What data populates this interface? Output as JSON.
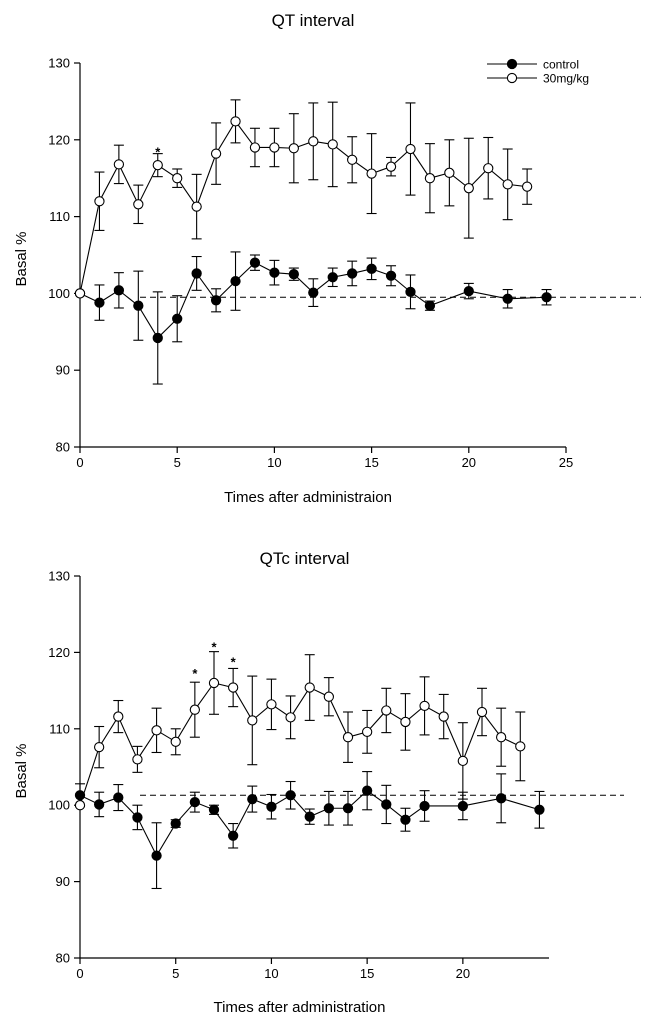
{
  "chart_data": [
    {
      "type": "line",
      "title": "QT interval",
      "xlabel": "Times after administraion",
      "ylabel": "Basal %",
      "xlim": [
        0,
        25
      ],
      "ylim": [
        80,
        130
      ],
      "xticks": [
        0,
        5,
        10,
        15,
        20,
        25
      ],
      "yticks": [
        80,
        90,
        100,
        110,
        120,
        130
      ],
      "reference_line": 99.5,
      "legend_position": "top-right",
      "significance_marks": [
        {
          "x": 4,
          "y": 118.5,
          "label": "*"
        }
      ],
      "series": [
        {
          "name": "control",
          "marker": "filled",
          "x": [
            0,
            1,
            2,
            3,
            4,
            5,
            6,
            7,
            8,
            9,
            10,
            11,
            12,
            13,
            14,
            15,
            16,
            17,
            18,
            20,
            22,
            24
          ],
          "y": [
            100,
            98.8,
            100.4,
            98.4,
            94.2,
            96.7,
            102.6,
            99.1,
            101.6,
            104.0,
            102.7,
            102.5,
            100.1,
            102.1,
            102.6,
            103.2,
            102.3,
            100.2,
            98.4,
            100.3,
            99.3,
            99.5
          ],
          "err": [
            0,
            2.3,
            2.3,
            4.5,
            6.0,
            3.0,
            2.2,
            1.5,
            3.8,
            1.0,
            1.6,
            0.8,
            1.8,
            1.2,
            1.6,
            1.4,
            1.3,
            2.2,
            0.6,
            1.0,
            1.2,
            1.0
          ]
        },
        {
          "name": "30mg/kg",
          "marker": "open",
          "x": [
            0,
            1,
            2,
            3,
            4,
            5,
            6,
            7,
            8,
            9,
            10,
            11,
            12,
            13,
            14,
            15,
            16,
            17,
            18,
            19,
            20,
            21,
            22,
            23
          ],
          "y": [
            100,
            112.0,
            116.8,
            111.6,
            116.7,
            115.0,
            111.3,
            118.2,
            122.4,
            119.0,
            119.0,
            118.9,
            119.8,
            119.4,
            117.4,
            115.6,
            116.5,
            118.8,
            115.0,
            115.7,
            113.7,
            116.3,
            114.2,
            113.9
          ],
          "err": [
            0,
            3.8,
            2.5,
            2.5,
            1.5,
            1.2,
            4.2,
            4.0,
            2.8,
            2.5,
            2.5,
            4.5,
            5.0,
            5.5,
            3.0,
            5.2,
            1.2,
            6.0,
            4.5,
            4.3,
            6.5,
            4.0,
            4.6,
            2.3
          ]
        }
      ]
    },
    {
      "type": "line",
      "title": "QTc interval",
      "xlabel": "Times after administration",
      "ylabel": "Basal %",
      "xlim": [
        0,
        24.5
      ],
      "ylim": [
        80,
        130
      ],
      "xticks": [
        0,
        5,
        10,
        15,
        20
      ],
      "yticks": [
        80,
        90,
        100,
        110,
        120,
        130
      ],
      "reference_line": 101.3,
      "legend_position": "none",
      "significance_marks": [
        {
          "x": 6,
          "y": 117.3,
          "label": "*"
        },
        {
          "x": 7,
          "y": 120.8,
          "label": "*"
        },
        {
          "x": 8,
          "y": 118.8,
          "label": "*"
        }
      ],
      "series": [
        {
          "name": "control",
          "marker": "filled",
          "x": [
            0,
            1,
            2,
            3,
            4,
            5,
            6,
            7,
            8,
            9,
            10,
            11,
            12,
            13,
            14,
            15,
            16,
            17,
            18,
            20,
            22,
            24
          ],
          "y": [
            101.3,
            100.1,
            101.0,
            98.4,
            93.4,
            97.6,
            100.4,
            99.4,
            96.0,
            100.8,
            99.8,
            101.3,
            98.5,
            99.6,
            99.6,
            101.9,
            100.1,
            98.1,
            99.9,
            99.9,
            100.9,
            99.4
          ],
          "err": [
            1.5,
            1.6,
            1.7,
            1.6,
            4.3,
            0.5,
            1.3,
            0.6,
            1.6,
            1.7,
            1.6,
            1.8,
            1.0,
            2.2,
            2.2,
            2.5,
            2.5,
            1.5,
            2.0,
            1.8,
            3.2,
            2.4
          ]
        },
        {
          "name": "30mg/kg",
          "marker": "open",
          "x": [
            0,
            1,
            2,
            3,
            4,
            5,
            6,
            7,
            8,
            9,
            10,
            11,
            12,
            13,
            14,
            15,
            16,
            17,
            18,
            19,
            20,
            21,
            22,
            23
          ],
          "y": [
            100,
            107.6,
            111.6,
            106.0,
            109.8,
            108.3,
            112.5,
            116.0,
            115.4,
            111.1,
            113.2,
            111.5,
            115.4,
            114.2,
            108.9,
            109.6,
            112.4,
            110.9,
            113.0,
            111.6,
            105.8,
            112.2,
            108.9,
            107.7
          ],
          "err": [
            0,
            2.7,
            2.1,
            1.7,
            2.9,
            1.7,
            3.6,
            4.1,
            2.5,
            5.8,
            3.3,
            2.8,
            4.3,
            2.5,
            3.3,
            2.8,
            2.9,
            3.7,
            3.8,
            2.9,
            5.0,
            3.1,
            3.8,
            4.5
          ]
        }
      ]
    }
  ]
}
